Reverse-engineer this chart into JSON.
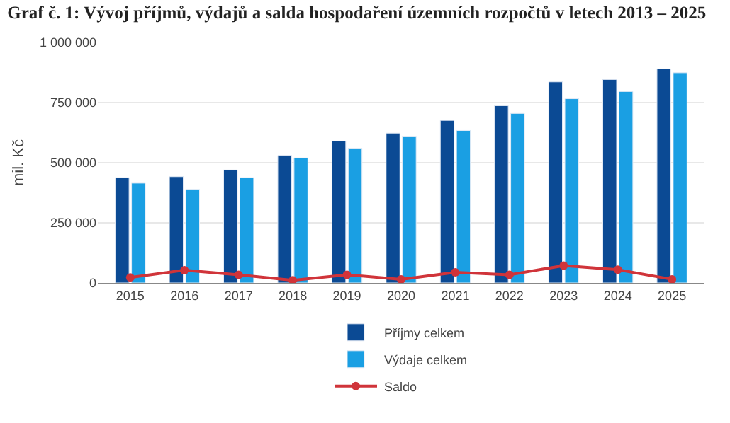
{
  "chart_data": {
    "type": "bar",
    "title": "Graf č. 1: Vývoj příjmů, výdajů a salda hospodaření územních rozpočtů v letech 2013 – 2025",
    "ylabel": "mil. Kč",
    "categories": [
      "2015",
      "2016",
      "2017",
      "2018",
      "2019",
      "2020",
      "2021",
      "2022",
      "2023",
      "2024",
      "2025"
    ],
    "series": [
      {
        "name": "Příjmy celkem",
        "color": "#0b4a94",
        "values": [
          438000,
          442000,
          470000,
          530000,
          590000,
          623000,
          676000,
          737000,
          836000,
          846000,
          890000
        ]
      },
      {
        "name": "Výdaje celkem",
        "color": "#1a9fe3",
        "values": [
          415000,
          389000,
          438000,
          520000,
          560000,
          610000,
          634000,
          705000,
          766000,
          796000,
          874000
        ]
      },
      {
        "name": "Saldo",
        "type": "line",
        "color": "#d0343a",
        "values": [
          23000,
          53000,
          34000,
          11000,
          34000,
          15000,
          44000,
          34000,
          72000,
          55000,
          15000
        ]
      }
    ],
    "ylim": [
      0,
      1000000
    ],
    "yticks": [
      {
        "value": 0,
        "label": "0"
      },
      {
        "value": 250000,
        "label": "250 000"
      },
      {
        "value": 500000,
        "label": "500 000"
      },
      {
        "value": 750000,
        "label": "750 000"
      },
      {
        "value": 1000000,
        "label": "1 000 000"
      }
    ],
    "grid": "y",
    "legend": "bottom",
    "marker": "circle"
  }
}
